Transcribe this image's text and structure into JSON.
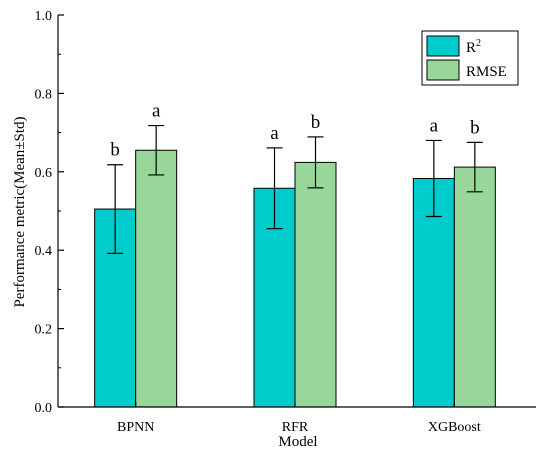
{
  "chart_data": {
    "type": "bar",
    "xlabel": "Model",
    "ylabel": "Performance metric(Mean±Std)",
    "ylim": [
      0,
      1.0
    ],
    "yticks": [
      "0.0",
      "0.2",
      "0.4",
      "0.6",
      "0.8",
      "1.0"
    ],
    "categories": [
      "BPNN",
      "RFR",
      "XGBoost"
    ],
    "legend_position": "top-right",
    "series": [
      {
        "name": "R",
        "name_superscript": "2",
        "color": "#00CCCC",
        "values": [
          0.505,
          0.558,
          0.583
        ],
        "errors": [
          0.113,
          0.103,
          0.097
        ],
        "significance": [
          "b",
          "a",
          "a"
        ]
      },
      {
        "name": "RMSE",
        "color": "#99D699",
        "values": [
          0.655,
          0.624,
          0.612
        ],
        "errors": [
          0.063,
          0.065,
          0.063
        ],
        "significance": [
          "a",
          "b",
          "b"
        ]
      }
    ]
  }
}
